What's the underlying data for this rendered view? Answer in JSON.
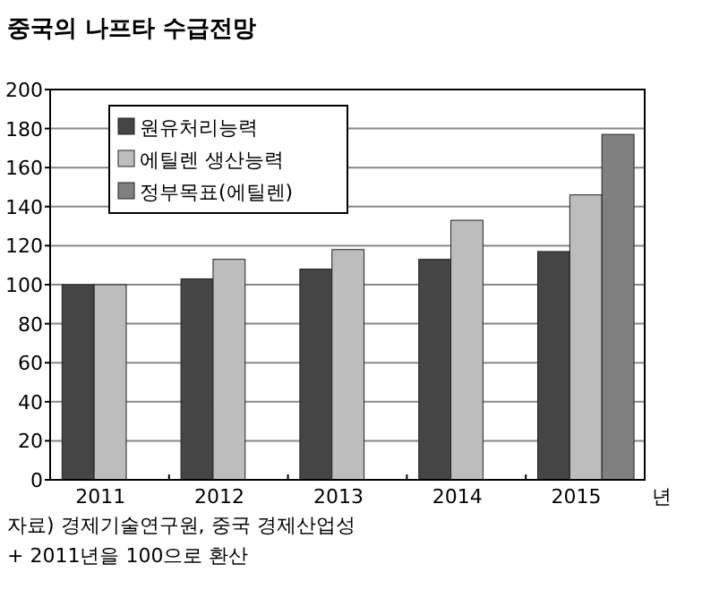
{
  "chart_data": {
    "type": "bar",
    "title": "중국의 나프타 수급전망",
    "xlabel": "년",
    "categories": [
      "2011",
      "2012",
      "2013",
      "2014",
      "2015"
    ],
    "series": [
      {
        "name": "원유처리능력",
        "color": "#454545",
        "values": [
          100,
          103,
          108,
          113,
          117
        ]
      },
      {
        "name": "에틸렌 생산능력",
        "color": "#bdbdbd",
        "values": [
          100,
          113,
          118,
          133,
          146
        ]
      },
      {
        "name": "정부목표(에틸렌)",
        "color": "#808080",
        "values": [
          null,
          null,
          null,
          null,
          177
        ]
      }
    ],
    "ylim": [
      0,
      200
    ],
    "yticks": [
      0,
      20,
      40,
      60,
      80,
      100,
      120,
      140,
      160,
      180,
      200
    ],
    "grid": "y",
    "legend": "top left",
    "annotations": [
      "자료) 경제기술연구원, 중국 경제산업성",
      "+ 2011년을 100으로 환산"
    ]
  }
}
